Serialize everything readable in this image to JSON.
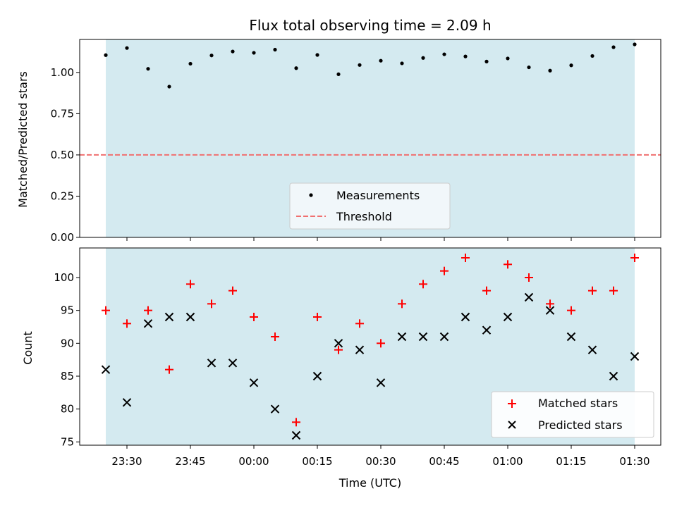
{
  "chart_data": [
    {
      "type": "scatter",
      "title": "Flux total observing time = 2.09 h",
      "xlabel": "",
      "ylabel": "Matched/Predicted stars",
      "ylim": [
        0,
        1.2
      ],
      "yticks": [
        0.0,
        0.25,
        0.5,
        0.75,
        1.0
      ],
      "ytick_labels": [
        "0.00",
        "0.25",
        "0.50",
        "0.75",
        "1.00"
      ],
      "x": [
        "23:25",
        "23:30",
        "23:35",
        "23:40",
        "23:45",
        "23:50",
        "23:55",
        "00:00",
        "00:05",
        "00:10",
        "00:15",
        "00:20",
        "00:25",
        "00:30",
        "00:35",
        "00:40",
        "00:45",
        "00:50",
        "00:55",
        "01:00",
        "01:05",
        "01:10",
        "01:15",
        "01:20",
        "01:25",
        "01:30"
      ],
      "series": [
        {
          "name": "Measurements",
          "marker": "dot",
          "color": "#000000",
          "values": [
            1.105,
            1.148,
            1.022,
            0.914,
            1.053,
            1.103,
            1.127,
            1.119,
            1.138,
            1.026,
            1.106,
            0.989,
            1.045,
            1.071,
            1.055,
            1.088,
            1.11,
            1.097,
            1.066,
            1.085,
            1.031,
            1.011,
            1.043,
            1.1,
            1.153,
            1.17
          ]
        }
      ],
      "threshold": {
        "name": "Threshold",
        "value": 0.5,
        "color": "#f07070",
        "style": "dashed"
      },
      "observing_window": {
        "start": "23:25",
        "end": "01:30",
        "color": "#d4eaf0"
      },
      "legend": {
        "placement": "lower-center",
        "entries": [
          "Measurements",
          "Threshold"
        ]
      },
      "grid": false
    },
    {
      "type": "scatter",
      "title": "",
      "xlabel": "Time (UTC)",
      "ylabel": "Count",
      "ylim": [
        74.5,
        104.5
      ],
      "yticks": [
        75,
        80,
        85,
        90,
        95,
        100
      ],
      "ytick_labels": [
        "75",
        "80",
        "85",
        "90",
        "95",
        "100"
      ],
      "xticks": [
        "23:30",
        "23:45",
        "00:00",
        "00:15",
        "00:30",
        "00:45",
        "01:00",
        "01:15",
        "01:30"
      ],
      "x": [
        "23:25",
        "23:30",
        "23:35",
        "23:40",
        "23:45",
        "23:50",
        "23:55",
        "00:00",
        "00:05",
        "00:10",
        "00:15",
        "00:20",
        "00:25",
        "00:30",
        "00:35",
        "00:40",
        "00:45",
        "00:50",
        "00:55",
        "01:00",
        "01:05",
        "01:10",
        "01:15",
        "01:20",
        "01:25",
        "01:30"
      ],
      "series": [
        {
          "name": "Matched stars",
          "marker": "plus",
          "color": "#ff0000",
          "values": [
            95,
            93,
            95,
            86,
            99,
            96,
            98,
            94,
            91,
            78,
            94,
            89,
            93,
            90,
            96,
            99,
            101,
            103,
            98,
            102,
            100,
            96,
            95,
            98,
            98,
            103
          ]
        },
        {
          "name": "Predicted stars",
          "marker": "x",
          "color": "#000000",
          "values": [
            86,
            81,
            93,
            94,
            94,
            87,
            87,
            84,
            80,
            76,
            85,
            90,
            89,
            84,
            91,
            91,
            91,
            94,
            92,
            94,
            97,
            95,
            91,
            89,
            85,
            88
          ]
        }
      ],
      "observing_window": {
        "start": "23:25",
        "end": "01:30",
        "color": "#d4eaf0"
      },
      "legend": {
        "placement": "lower-right",
        "entries": [
          "Matched stars",
          "Predicted stars"
        ]
      },
      "grid": false
    }
  ]
}
